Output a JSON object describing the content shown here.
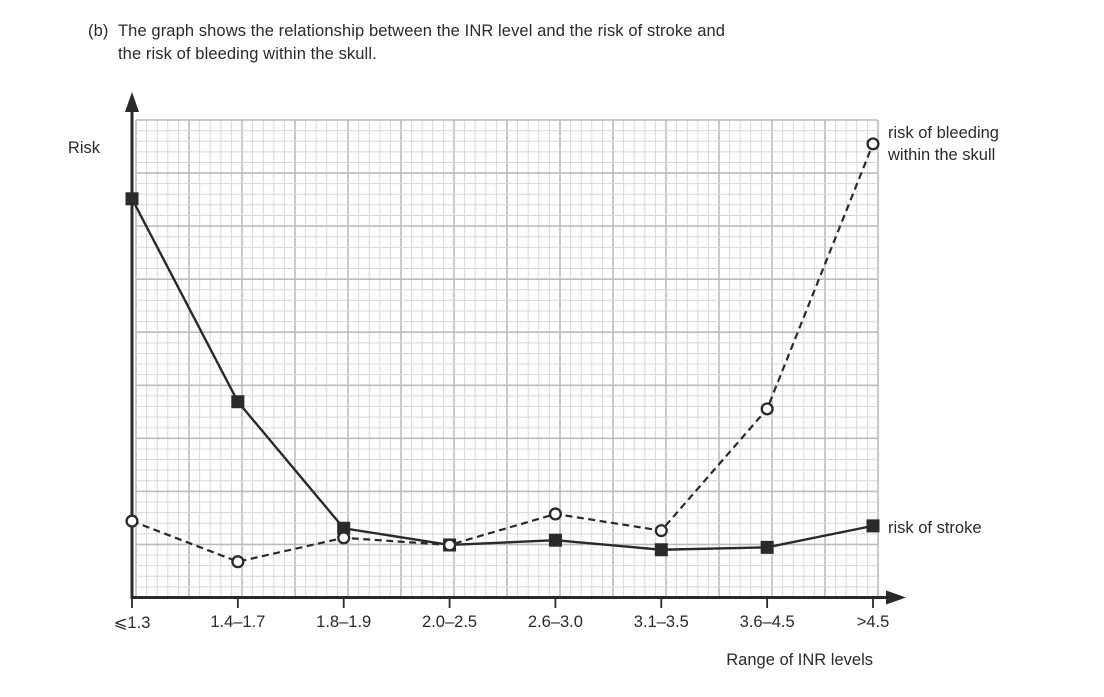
{
  "title": {
    "prefix": "(b)",
    "line1": "The graph shows the relationship between the INR level and the risk of stroke and",
    "line2": "the risk of bleeding within the skull."
  },
  "colors": {
    "ink": "#2b2a29",
    "grid_fine": "#d8d8d8",
    "grid_heavy": "#bcbcbc",
    "background": "#ffffff"
  },
  "chart_data": {
    "type": "line",
    "title": "",
    "xlabel": "Range of INR levels",
    "ylabel": "Risk",
    "categories": [
      "⩽1.3",
      "1.4–1.7",
      "1.8–1.9",
      "2.0–2.5",
      "2.6–3.0",
      "3.1–3.5",
      "3.6–4.5",
      ">4.5"
    ],
    "ylim": [
      0,
      100
    ],
    "y_ticks_shown": false,
    "grid": "graph-paper (fine cells, heavy line every 5 cells)",
    "legend_position": "labels at right end of each line",
    "series": [
      {
        "name": "risk of stroke",
        "marker": "filled-square",
        "line_style": "solid",
        "color": "#2b2a29",
        "values": [
          83.5,
          41,
          14.5,
          11,
          12,
          10,
          10.5,
          15
        ]
      },
      {
        "name": "risk of bleeding within the skull",
        "label_lines": [
          "risk of bleeding",
          "within the skull"
        ],
        "marker": "open-circle",
        "line_style": "dashed",
        "color": "#2b2a29",
        "values": [
          16,
          7.5,
          12.5,
          11,
          17.5,
          14,
          39.5,
          95
        ]
      }
    ]
  }
}
